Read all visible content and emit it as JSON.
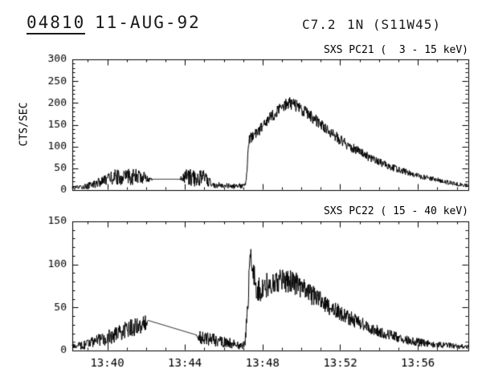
{
  "header": {
    "event_id": "04810",
    "date": "11-AUG-92",
    "goes_class": "C7.2",
    "importance_location": "1N (S11W45)"
  },
  "colors": {
    "line": "#000000",
    "text": "#000000",
    "background": "#ffffff"
  },
  "chart_data": [
    {
      "type": "line",
      "title": "SXS PC21 (  3 - 15 keV)",
      "ylabel": "CTS/SEC",
      "ylim": [
        0,
        300
      ],
      "yticks": [
        0,
        50,
        100,
        150,
        200,
        250,
        300
      ],
      "y_minor_step": 10,
      "xlim": [
        -1.8,
        18.6
      ],
      "xticks": [
        0,
        4,
        8,
        12,
        16
      ],
      "xtick_labels": [
        "13:40",
        "13:44",
        "13:48",
        "13:52",
        "13:56"
      ],
      "x_minor_step": 1,
      "show_xtick_labels": false,
      "points": [
        [
          -1.8,
          4,
          4
        ],
        [
          -1.2,
          8,
          6
        ],
        [
          -0.6,
          15,
          10
        ],
        [
          0,
          25,
          12
        ],
        [
          0.4,
          30,
          18
        ],
        [
          0.8,
          28,
          16
        ],
        [
          1.2,
          32,
          20
        ],
        [
          1.6,
          30,
          18
        ],
        [
          2.0,
          28,
          12
        ],
        [
          2.3,
          25,
          3
        ],
        [
          2.35,
          25,
          0
        ],
        [
          3.75,
          25,
          0
        ],
        [
          3.8,
          25,
          8
        ],
        [
          4.1,
          30,
          18
        ],
        [
          4.5,
          28,
          20
        ],
        [
          4.9,
          30,
          20
        ],
        [
          5.2,
          20,
          14
        ],
        [
          5.5,
          12,
          8
        ],
        [
          6.0,
          10,
          6
        ],
        [
          6.5,
          9,
          6
        ],
        [
          7.0,
          10,
          6
        ],
        [
          7.15,
          15,
          8
        ],
        [
          7.3,
          110,
          15
        ],
        [
          7.5,
          128,
          12
        ],
        [
          7.8,
          135,
          12
        ],
        [
          8.2,
          155,
          14
        ],
        [
          8.6,
          175,
          15
        ],
        [
          9.0,
          190,
          15
        ],
        [
          9.3,
          200,
          15
        ],
        [
          9.6,
          198,
          15
        ],
        [
          10.0,
          185,
          15
        ],
        [
          10.5,
          170,
          14
        ],
        [
          11.0,
          150,
          13
        ],
        [
          11.5,
          132,
          12
        ],
        [
          12.0,
          115,
          12
        ],
        [
          12.5,
          100,
          11
        ],
        [
          13.0,
          88,
          10
        ],
        [
          13.5,
          75,
          10
        ],
        [
          14.0,
          65,
          9
        ],
        [
          14.5,
          55,
          8
        ],
        [
          15.0,
          47,
          8
        ],
        [
          15.5,
          40,
          7
        ],
        [
          16.0,
          33,
          7
        ],
        [
          16.5,
          28,
          6
        ],
        [
          17.0,
          23,
          6
        ],
        [
          17.5,
          18,
          5
        ],
        [
          18.0,
          14,
          5
        ],
        [
          18.6,
          10,
          4
        ]
      ]
    },
    {
      "type": "line",
      "title": "SXS PC22 ( 15 - 40 keV)",
      "ylabel": "",
      "ylim": [
        0,
        150
      ],
      "yticks": [
        0,
        50,
        100,
        150
      ],
      "y_minor_step": 10,
      "xlim": [
        -1.8,
        18.6
      ],
      "xticks": [
        0,
        4,
        8,
        12,
        16
      ],
      "xtick_labels": [
        "13:40",
        "13:44",
        "13:48",
        "13:52",
        "13:56"
      ],
      "x_minor_step": 1,
      "show_xtick_labels": true,
      "points": [
        [
          -1.8,
          4,
          4
        ],
        [
          -1.0,
          8,
          6
        ],
        [
          0,
          15,
          9
        ],
        [
          0.8,
          22,
          10
        ],
        [
          1.5,
          28,
          11
        ],
        [
          2.0,
          32,
          10
        ],
        [
          2.1,
          35,
          0
        ],
        [
          4.6,
          18,
          0
        ],
        [
          4.7,
          16,
          8
        ],
        [
          5.2,
          14,
          8
        ],
        [
          5.8,
          10,
          7
        ],
        [
          6.4,
          8,
          6
        ],
        [
          6.9,
          5,
          4
        ],
        [
          7.1,
          8,
          5
        ],
        [
          7.25,
          60,
          20
        ],
        [
          7.35,
          115,
          10
        ],
        [
          7.5,
          95,
          12
        ],
        [
          7.7,
          72,
          14
        ],
        [
          8.0,
          70,
          15
        ],
        [
          8.4,
          80,
          15
        ],
        [
          8.8,
          82,
          15
        ],
        [
          9.2,
          78,
          14
        ],
        [
          9.6,
          80,
          14
        ],
        [
          10.0,
          72,
          13
        ],
        [
          10.5,
          65,
          12
        ],
        [
          11.0,
          58,
          11
        ],
        [
          11.5,
          50,
          10
        ],
        [
          12.0,
          44,
          9
        ],
        [
          12.5,
          38,
          9
        ],
        [
          13.0,
          32,
          8
        ],
        [
          13.5,
          27,
          7
        ],
        [
          14.0,
          22,
          7
        ],
        [
          14.5,
          18,
          6
        ],
        [
          15.0,
          15,
          6
        ],
        [
          15.5,
          12,
          5
        ],
        [
          16.0,
          10,
          5
        ],
        [
          16.5,
          8,
          4
        ],
        [
          17.0,
          7,
          4
        ],
        [
          18.0,
          5,
          3
        ],
        [
          18.6,
          4,
          3
        ]
      ]
    }
  ]
}
